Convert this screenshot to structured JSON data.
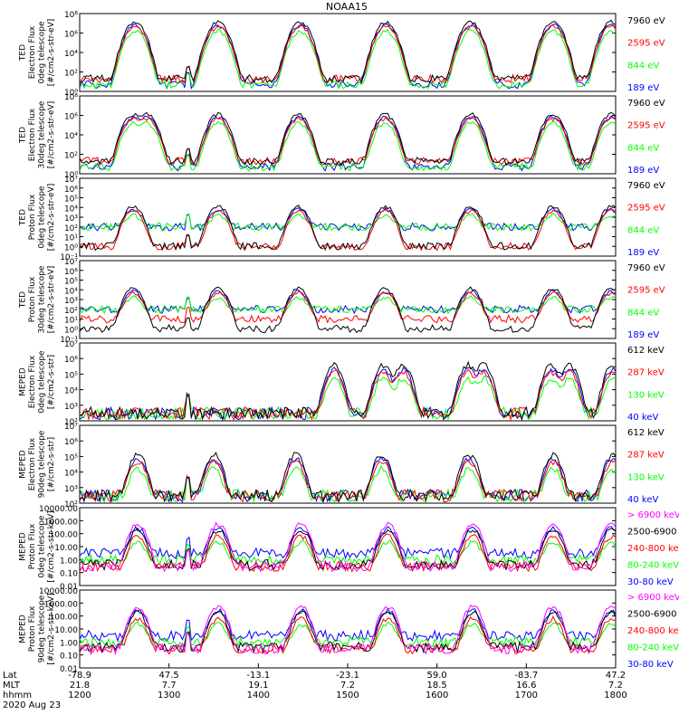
{
  "title": "NOAA15",
  "date_label": "2020 Aug 23",
  "axis_rows": [
    {
      "label": "Lat",
      "values": [
        "-78.9",
        "47.5",
        "-13.1",
        "-23.1",
        "59.0",
        "-83.7",
        "47.2"
      ]
    },
    {
      "label": "MLT",
      "values": [
        "21.8",
        "7.7",
        "19.1",
        "7.2",
        "18.5",
        "16.6",
        "7.2"
      ]
    },
    {
      "label": "hhmm",
      "values": [
        "1200",
        "1300",
        "1400",
        "1500",
        "1600",
        "1700",
        "1800"
      ]
    }
  ],
  "colors": {
    "blue": "#0000ff",
    "red": "#ff0000",
    "green": "#00ff00",
    "black": "#000000",
    "magenta": "#ff00ff"
  },
  "chart_data": [
    {
      "type": "line",
      "ylabel": [
        "TED",
        "Electron Flux",
        "0deg telescope",
        "[#/cm2-s-str-eV]"
      ],
      "scale": "log",
      "ylim": [
        1,
        100000000
      ],
      "ytick_labels": [
        "10⁰",
        "10²",
        "10⁴",
        "10⁶",
        "10⁸"
      ],
      "legend": [
        {
          "name": "7960 eV",
          "color": "#000000"
        },
        {
          "name": "2595 eV",
          "color": "#ff0000"
        },
        {
          "name": "844 eV",
          "color": "#00ff00"
        },
        {
          "name": "189 eV",
          "color": "#0000ff"
        }
      ],
      "xlim": [
        12.0,
        18.0
      ],
      "baseline": [
        20,
        20,
        5,
        5
      ],
      "events": [
        [
          12.62,
          10000000
        ],
        [
          13.55,
          10000000
        ],
        [
          14.47,
          10000000
        ],
        [
          15.43,
          10000000
        ],
        [
          16.38,
          10000000
        ],
        [
          17.3,
          10000000
        ],
        [
          17.95,
          10000000
        ]
      ],
      "quiet": [
        [
          13.18,
          13.25
        ]
      ]
    },
    {
      "type": "line",
      "ylabel": [
        "TED",
        "Electron Flux",
        "30deg telescope",
        "[#/cm2-s-str-eV]"
      ],
      "scale": "log",
      "ylim": [
        1,
        100000000
      ],
      "ytick_labels": [
        "10⁰",
        "10²",
        "10⁴",
        "10⁶",
        "10⁸"
      ],
      "legend": [
        {
          "name": "7960 eV",
          "color": "#000000"
        },
        {
          "name": "2595 eV",
          "color": "#ff0000"
        },
        {
          "name": "844 eV",
          "color": "#00ff00"
        },
        {
          "name": "189 eV",
          "color": "#0000ff"
        }
      ],
      "xlim": [
        12.0,
        18.0
      ],
      "baseline": [
        20,
        20,
        5,
        5
      ],
      "events": [
        [
          12.6,
          1000000
        ],
        [
          12.75,
          1000000
        ],
        [
          13.55,
          1000000
        ],
        [
          14.45,
          1000000
        ],
        [
          15.42,
          1000000
        ],
        [
          16.38,
          1000000
        ],
        [
          17.3,
          1000000
        ],
        [
          17.95,
          1000000
        ]
      ],
      "quiet": [
        [
          13.18,
          13.25
        ]
      ]
    },
    {
      "type": "line",
      "ylabel": [
        "TED",
        "Proton Flux",
        "0deg telescope",
        "[#/cm2-s-str-eV]"
      ],
      "scale": "log",
      "ylim": [
        0.1,
        10000000
      ],
      "ytick_labels": [
        "10⁻¹",
        "10⁰",
        "10¹",
        "10²",
        "10³",
        "10⁴",
        "10⁵",
        "10⁶",
        "10⁷"
      ],
      "legend": [
        {
          "name": "7960 eV",
          "color": "#000000"
        },
        {
          "name": "2595 eV",
          "color": "#ff0000"
        },
        {
          "name": "844 eV",
          "color": "#00ff00"
        },
        {
          "name": "189 eV",
          "color": "#0000ff"
        }
      ],
      "xlim": [
        12.0,
        18.0
      ],
      "baseline": [
        1,
        1,
        100,
        100
      ],
      "events": [
        [
          12.6,
          10000
        ],
        [
          13.55,
          10000
        ],
        [
          14.45,
          10000
        ],
        [
          15.42,
          10000
        ],
        [
          16.38,
          10000
        ],
        [
          17.3,
          10000
        ],
        [
          17.95,
          10000
        ]
      ],
      "quiet": [
        [
          13.18,
          13.25
        ]
      ]
    },
    {
      "type": "line",
      "ylabel": [
        "TED",
        "Proton Flux",
        "30deg telescope",
        "[#/cm2-s-str-eV]"
      ],
      "scale": "log",
      "ylim": [
        0.1,
        10000000
      ],
      "ytick_labels": [
        "10⁻¹",
        "10⁰",
        "10¹",
        "10²",
        "10³",
        "10⁴",
        "10⁵",
        "10⁶",
        "10⁷"
      ],
      "legend": [
        {
          "name": "7960 eV",
          "color": "#000000"
        },
        {
          "name": "2595 eV",
          "color": "#ff0000"
        },
        {
          "name": "844 eV",
          "color": "#00ff00"
        },
        {
          "name": "189 eV",
          "color": "#0000ff"
        }
      ],
      "xlim": [
        12.0,
        18.0
      ],
      "baseline": [
        1,
        10,
        100,
        100
      ],
      "events": [
        [
          12.6,
          10000
        ],
        [
          13.55,
          10000
        ],
        [
          14.45,
          10000
        ],
        [
          15.42,
          10000
        ],
        [
          16.38,
          10000
        ],
        [
          17.3,
          10000
        ],
        [
          17.95,
          10000
        ]
      ],
      "quiet": [
        [
          13.18,
          13.25
        ]
      ]
    },
    {
      "type": "line",
      "ylabel": [
        "MEPED",
        "Electron Flux",
        "0deg telescope",
        "[#/cm2-s-str]"
      ],
      "scale": "log",
      "ylim": [
        100,
        10000000
      ],
      "ytick_labels": [
        "10²",
        "10³",
        "10⁴",
        "10⁵",
        "10⁶",
        "10⁷"
      ],
      "legend": [
        {
          "name": "612 keV",
          "color": "#000000"
        },
        {
          "name": "287 keV",
          "color": "#ff0000"
        },
        {
          "name": "130 keV",
          "color": "#00ff00"
        },
        {
          "name": "40 keV",
          "color": "#0000ff"
        }
      ],
      "xlim": [
        12.0,
        18.0
      ],
      "baseline": [
        300,
        300,
        300,
        300
      ],
      "events": [
        [
          14.85,
          300000
        ],
        [
          15.4,
          300000
        ],
        [
          15.62,
          300000
        ],
        [
          16.35,
          300000
        ],
        [
          16.52,
          300000
        ],
        [
          17.28,
          300000
        ],
        [
          17.48,
          300000
        ],
        [
          17.97,
          300000
        ]
      ],
      "quiet": [
        [
          13.18,
          13.25
        ]
      ]
    },
    {
      "type": "line",
      "ylabel": [
        "MEPED",
        "Electron Flux",
        "90deg telescope",
        "[#/cm2-s-str]"
      ],
      "scale": "log",
      "ylim": [
        100,
        10000000
      ],
      "ytick_labels": [
        "10²",
        "10³",
        "10⁴",
        "10⁵",
        "10⁶",
        "10⁷"
      ],
      "legend": [
        {
          "name": "612 keV",
          "color": "#000000"
        },
        {
          "name": "287 keV",
          "color": "#ff0000"
        },
        {
          "name": "130 keV",
          "color": "#00ff00"
        },
        {
          "name": "40 keV",
          "color": "#0000ff"
        }
      ],
      "xlim": [
        12.0,
        18.0
      ],
      "baseline": [
        300,
        300,
        300,
        300
      ],
      "events": [
        [
          12.65,
          100000
        ],
        [
          13.5,
          100000
        ],
        [
          14.42,
          100000
        ],
        [
          15.38,
          100000
        ],
        [
          16.36,
          100000
        ],
        [
          17.3,
          100000
        ],
        [
          17.97,
          100000
        ]
      ],
      "quiet": [
        [
          13.18,
          13.25
        ]
      ]
    },
    {
      "type": "line",
      "ylabel": [
        "MEPED",
        "Proton Flux",
        "0deg telescope",
        "[#/cm2-s-str-keV]"
      ],
      "scale": "log",
      "ylim": [
        0.01,
        10000
      ],
      "ytick_labels": [
        "0.01",
        "0.10",
        "1.00",
        "10.00",
        "100.00",
        "1000.00",
        "10000.00"
      ],
      "legend": [
        {
          "name": "> 6900 keV",
          "color": "#ff00ff"
        },
        {
          "name": "2500-6900",
          "color": "#000000"
        },
        {
          "name": "240-800 keV",
          "color": "#ff0000"
        },
        {
          "name": "80-240 keV",
          "color": "#00ff00"
        },
        {
          "name": "30-80 keV",
          "color": "#0000ff"
        }
      ],
      "xlim": [
        12.0,
        18.0
      ],
      "baseline": [
        0.3,
        0.4,
        0.3,
        1.0,
        3.0
      ],
      "events": [
        [
          12.65,
          400
        ],
        [
          13.55,
          400
        ],
        [
          14.48,
          400
        ],
        [
          15.45,
          400
        ],
        [
          16.4,
          400
        ],
        [
          17.3,
          400
        ],
        [
          17.95,
          400
        ]
      ],
      "quiet": [
        [
          13.18,
          13.25
        ]
      ]
    },
    {
      "type": "line",
      "ylabel": [
        "MEPED",
        "Proton Flux",
        "90deg telescope",
        "[#/cm2-s-str-keV]"
      ],
      "scale": "log",
      "ylim": [
        0.01,
        10000
      ],
      "ytick_labels": [
        "0.01",
        "0.10",
        "1.00",
        "10.00",
        "100.00",
        "1000.00",
        "10000.00"
      ],
      "legend": [
        {
          "name": "> 6900 keV",
          "color": "#ff00ff"
        },
        {
          "name": "2500-6900",
          "color": "#000000"
        },
        {
          "name": "240-800 keV",
          "color": "#ff0000"
        },
        {
          "name": "80-240 keV",
          "color": "#00ff00"
        },
        {
          "name": "30-80 keV",
          "color": "#0000ff"
        }
      ],
      "xlim": [
        12.0,
        18.0
      ],
      "baseline": [
        0.3,
        0.4,
        0.3,
        1.0,
        3.0
      ],
      "events": [
        [
          12.65,
          400
        ],
        [
          13.55,
          400
        ],
        [
          14.48,
          400
        ],
        [
          15.45,
          400
        ],
        [
          16.4,
          400
        ],
        [
          17.3,
          400
        ],
        [
          17.95,
          400
        ]
      ],
      "quiet": [
        [
          13.18,
          13.25
        ]
      ]
    }
  ]
}
